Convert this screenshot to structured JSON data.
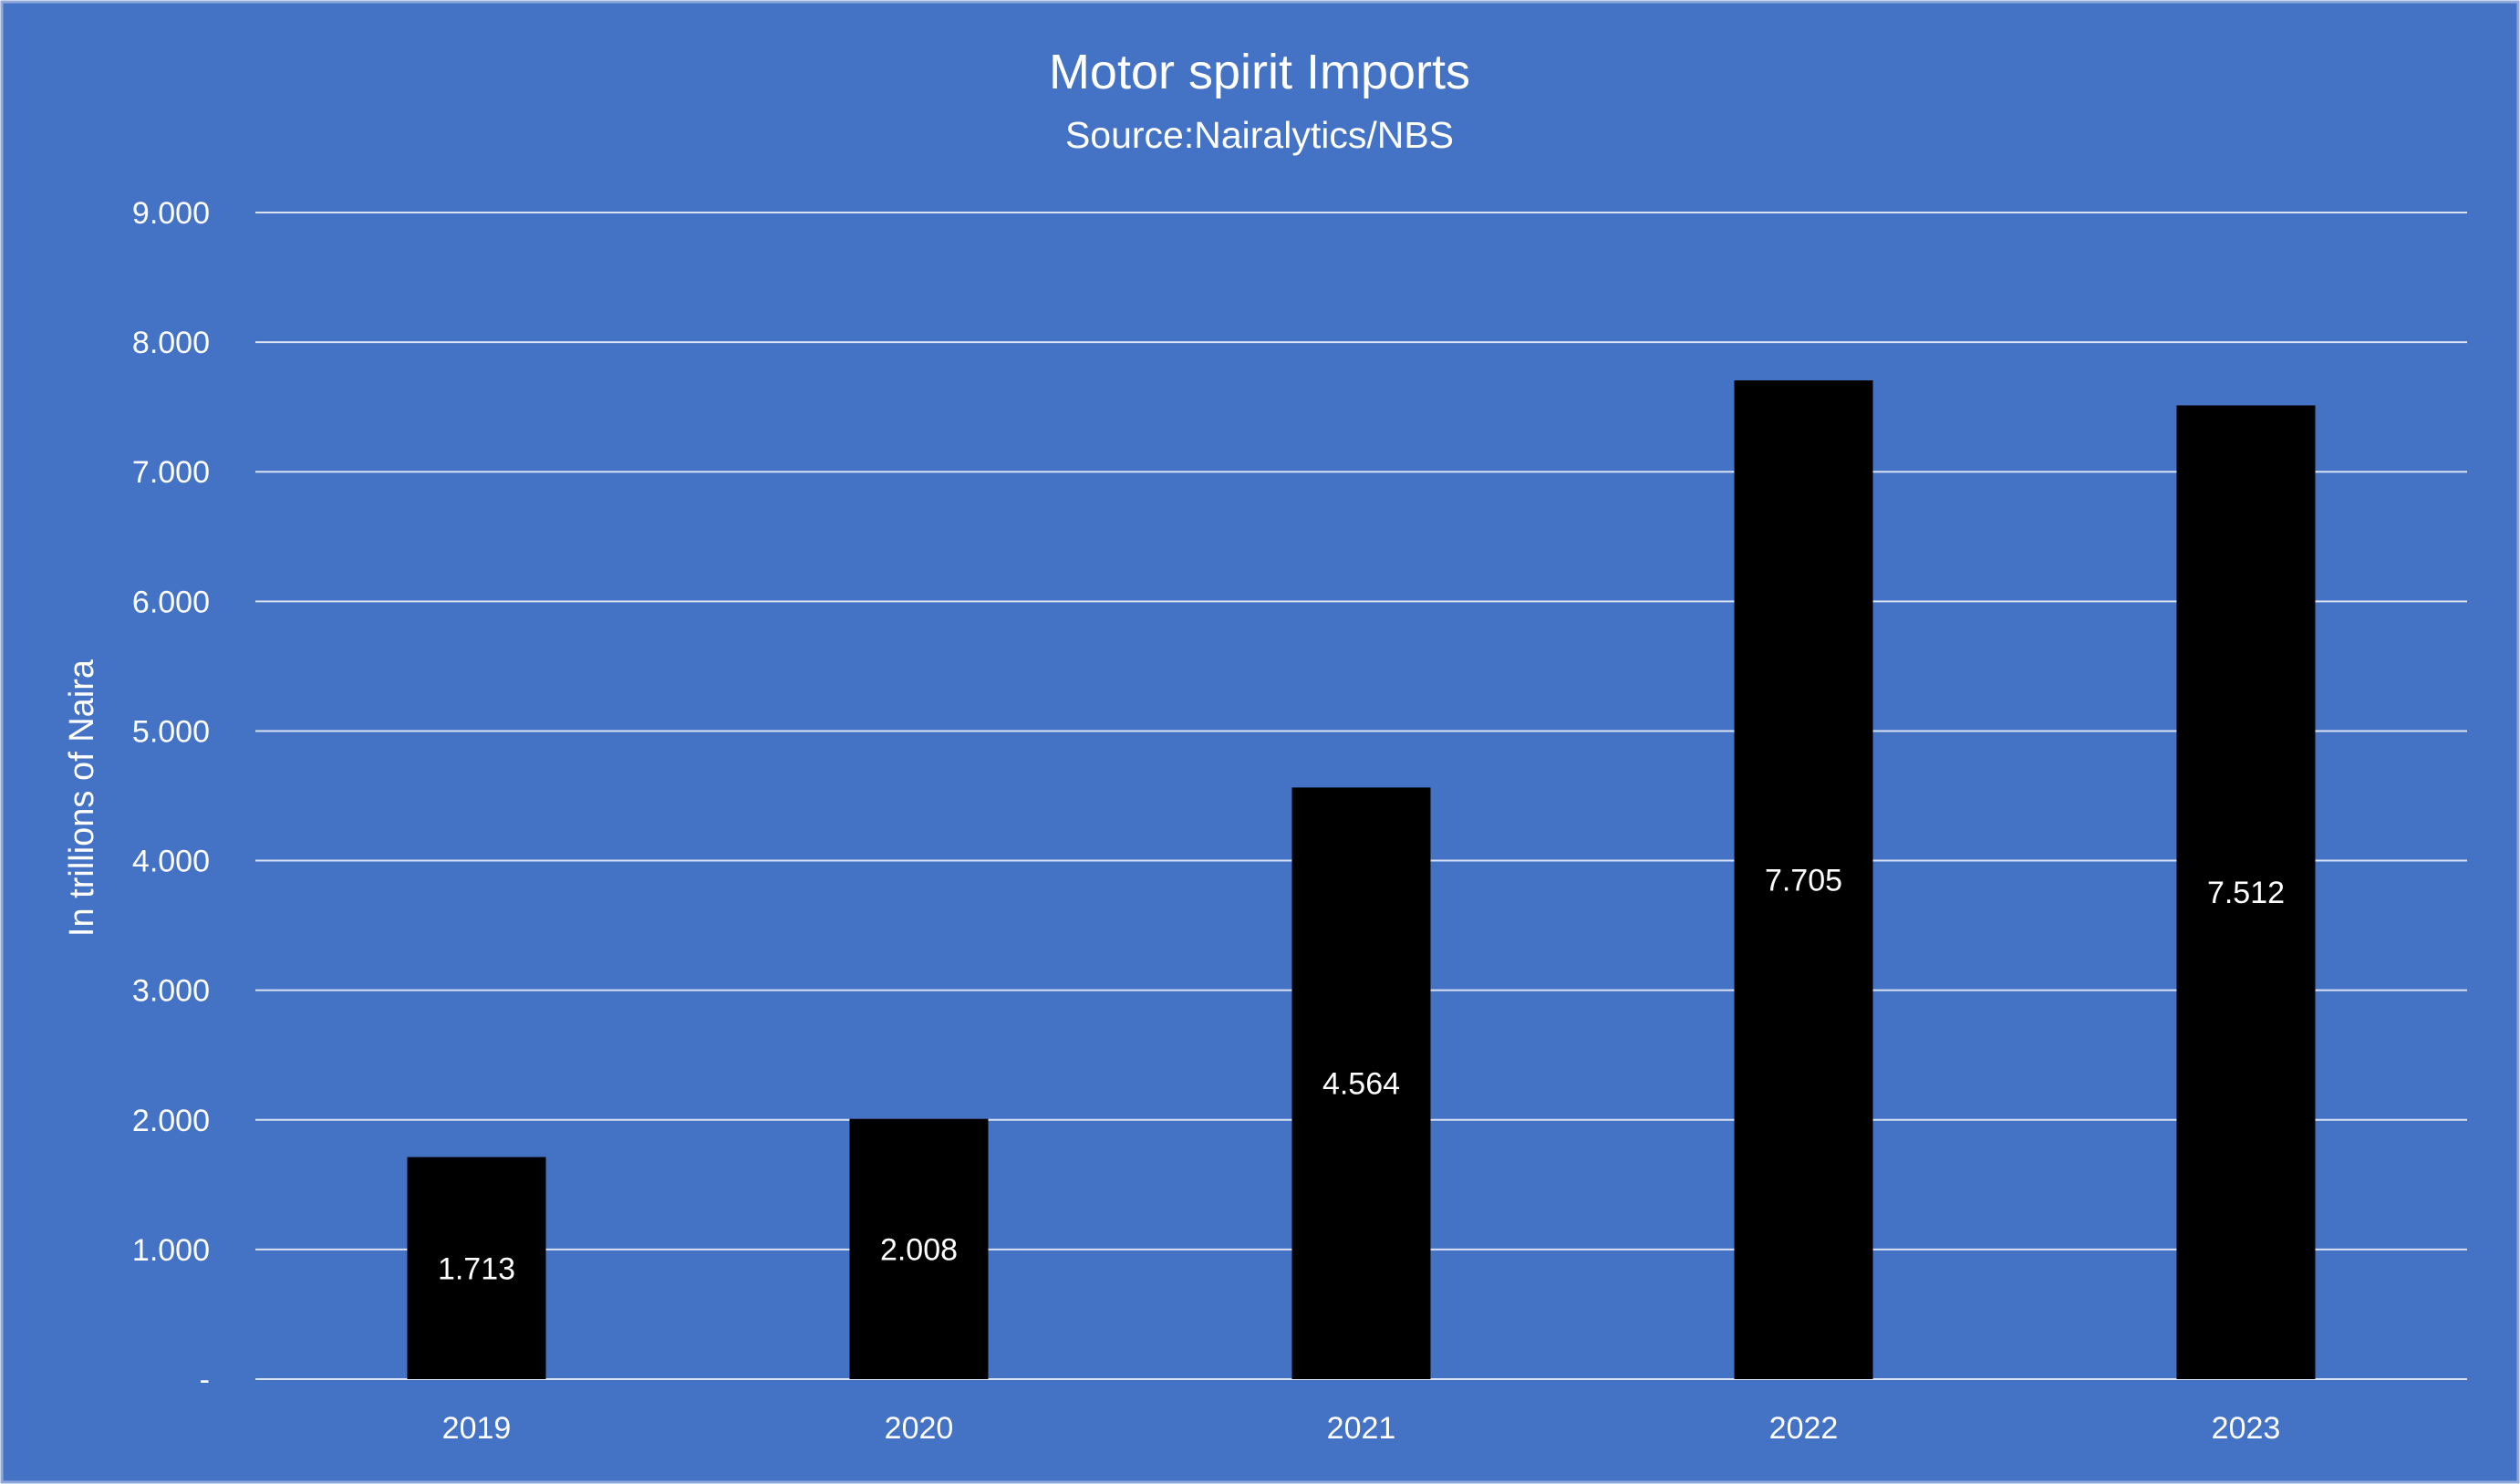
{
  "chart_data": {
    "type": "bar",
    "title": "Motor spirit Imports",
    "subtitle": "Source:Nairalytics/NBS",
    "xlabel": "",
    "ylabel": "In trillions of Naira",
    "categories": [
      "2019",
      "2020",
      "2021",
      "2022",
      "2023"
    ],
    "values": [
      1.713,
      2.008,
      4.564,
      7.705,
      7.512
    ],
    "data_labels": [
      "1.713",
      "2.008",
      "4.564",
      "7.705",
      "7.512"
    ],
    "ylim": [
      0,
      9
    ],
    "yticks": [
      0,
      1,
      2,
      3,
      4,
      5,
      6,
      7,
      8,
      9
    ],
    "ytick_labels": [
      "-",
      "1.000",
      "2.000",
      "3.000",
      "4.000",
      "5.000",
      "6.000",
      "7.000",
      "8.000",
      "9.000"
    ],
    "grid": true,
    "legend": "none",
    "colors": {
      "background": "#4472C4",
      "bar": "#000000",
      "text": "#ffffff",
      "grid": "#d9e1f2",
      "frame": "#8fa9dc"
    }
  }
}
